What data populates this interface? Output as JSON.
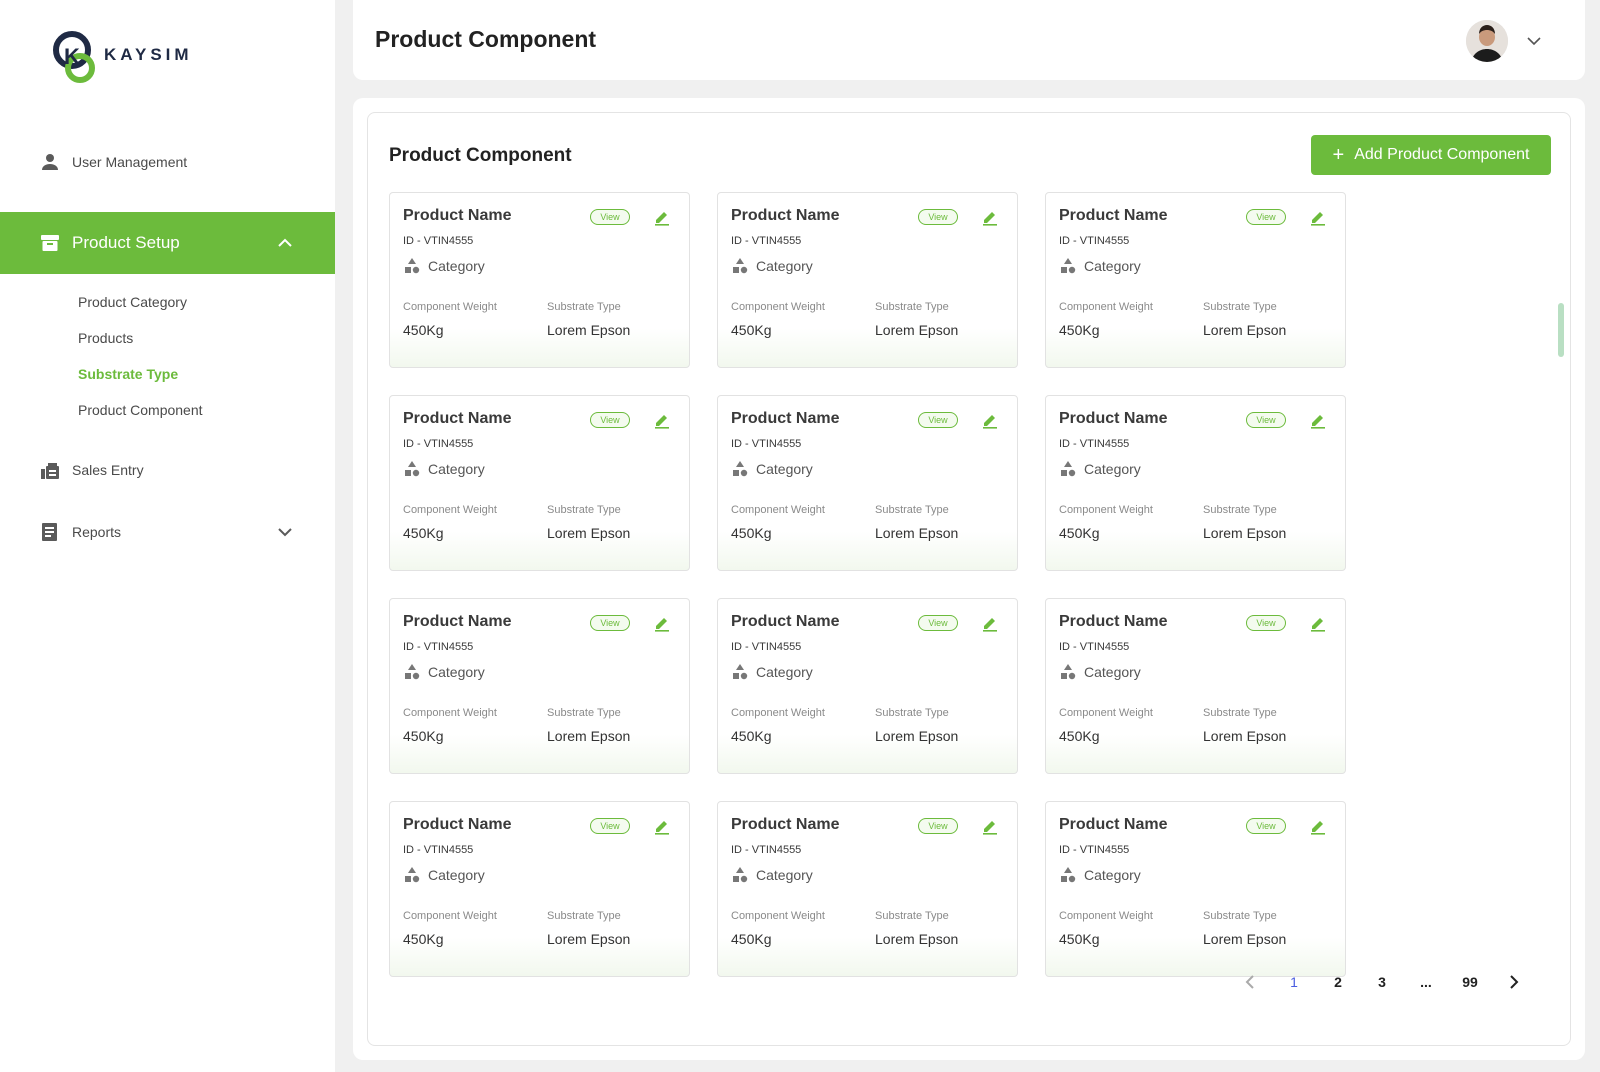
{
  "brand": {
    "name": "KAYSIM",
    "accent": "#6cbb3c"
  },
  "sidebar": {
    "user_management": "User Management",
    "product_setup": "Product Setup",
    "sub_items": [
      "Product Category",
      "Products",
      "Substrate Type",
      "Product Component"
    ],
    "active_sub_item": "Substrate Type",
    "sales_entry": "Sales Entry",
    "reports": "Reports"
  },
  "header": {
    "title": "Product Component"
  },
  "main": {
    "section_title": "Product Component",
    "add_button_label": "Add Product Component",
    "card_template": {
      "name": "Product Name",
      "view_label": "View",
      "id": "ID - VTIN4555",
      "category": "Category",
      "weight_label": "Component Weight",
      "weight_value": "450Kg",
      "substrate_label": "Substrate Type",
      "substrate_value": "Lorem Epson"
    },
    "cards": [
      {
        "name": "Product Name",
        "view": "View",
        "id": "ID - VTIN4555",
        "category": "Category",
        "weight_label": "Component Weight",
        "weight": "450Kg",
        "substrate_label": "Substrate Type",
        "substrate": "Lorem Epson"
      },
      {
        "name": "Product Name",
        "view": "View",
        "id": "ID - VTIN4555",
        "category": "Category",
        "weight_label": "Component Weight",
        "weight": "450Kg",
        "substrate_label": "Substrate Type",
        "substrate": "Lorem Epson"
      },
      {
        "name": "Product Name",
        "view": "View",
        "id": "ID - VTIN4555",
        "category": "Category",
        "weight_label": "Component Weight",
        "weight": "450Kg",
        "substrate_label": "Substrate Type",
        "substrate": "Lorem Epson"
      },
      {
        "name": "Product Name",
        "view": "View",
        "id": "ID - VTIN4555",
        "category": "Category",
        "weight_label": "Component Weight",
        "weight": "450Kg",
        "substrate_label": "Substrate Type",
        "substrate": "Lorem Epson"
      },
      {
        "name": "Product Name",
        "view": "View",
        "id": "ID - VTIN4555",
        "category": "Category",
        "weight_label": "Component Weight",
        "weight": "450Kg",
        "substrate_label": "Substrate Type",
        "substrate": "Lorem Epson"
      },
      {
        "name": "Product Name",
        "view": "View",
        "id": "ID - VTIN4555",
        "category": "Category",
        "weight_label": "Component Weight",
        "weight": "450Kg",
        "substrate_label": "Substrate Type",
        "substrate": "Lorem Epson"
      },
      {
        "name": "Product Name",
        "view": "View",
        "id": "ID - VTIN4555",
        "category": "Category",
        "weight_label": "Component Weight",
        "weight": "450Kg",
        "substrate_label": "Substrate Type",
        "substrate": "Lorem Epson"
      },
      {
        "name": "Product Name",
        "view": "View",
        "id": "ID - VTIN4555",
        "category": "Category",
        "weight_label": "Component Weight",
        "weight": "450Kg",
        "substrate_label": "Substrate Type",
        "substrate": "Lorem Epson"
      },
      {
        "name": "Product Name",
        "view": "View",
        "id": "ID - VTIN4555",
        "category": "Category",
        "weight_label": "Component Weight",
        "weight": "450Kg",
        "substrate_label": "Substrate Type",
        "substrate": "Lorem Epson"
      },
      {
        "name": "Product Name",
        "view": "View",
        "id": "ID - VTIN4555",
        "category": "Category",
        "weight_label": "Component Weight",
        "weight": "450Kg",
        "substrate_label": "Substrate Type",
        "substrate": "Lorem Epson"
      },
      {
        "name": "Product Name",
        "view": "View",
        "id": "ID - VTIN4555",
        "category": "Category",
        "weight_label": "Component Weight",
        "weight": "450Kg",
        "substrate_label": "Substrate Type",
        "substrate": "Lorem Epson"
      },
      {
        "name": "Product Name",
        "view": "View",
        "id": "ID - VTIN4555",
        "category": "Category",
        "weight_label": "Component Weight",
        "weight": "450Kg",
        "substrate_label": "Substrate Type",
        "substrate": "Lorem Epson"
      }
    ]
  },
  "pagination": {
    "pages": [
      "1",
      "2",
      "3",
      "...",
      "99"
    ],
    "current": "1"
  }
}
